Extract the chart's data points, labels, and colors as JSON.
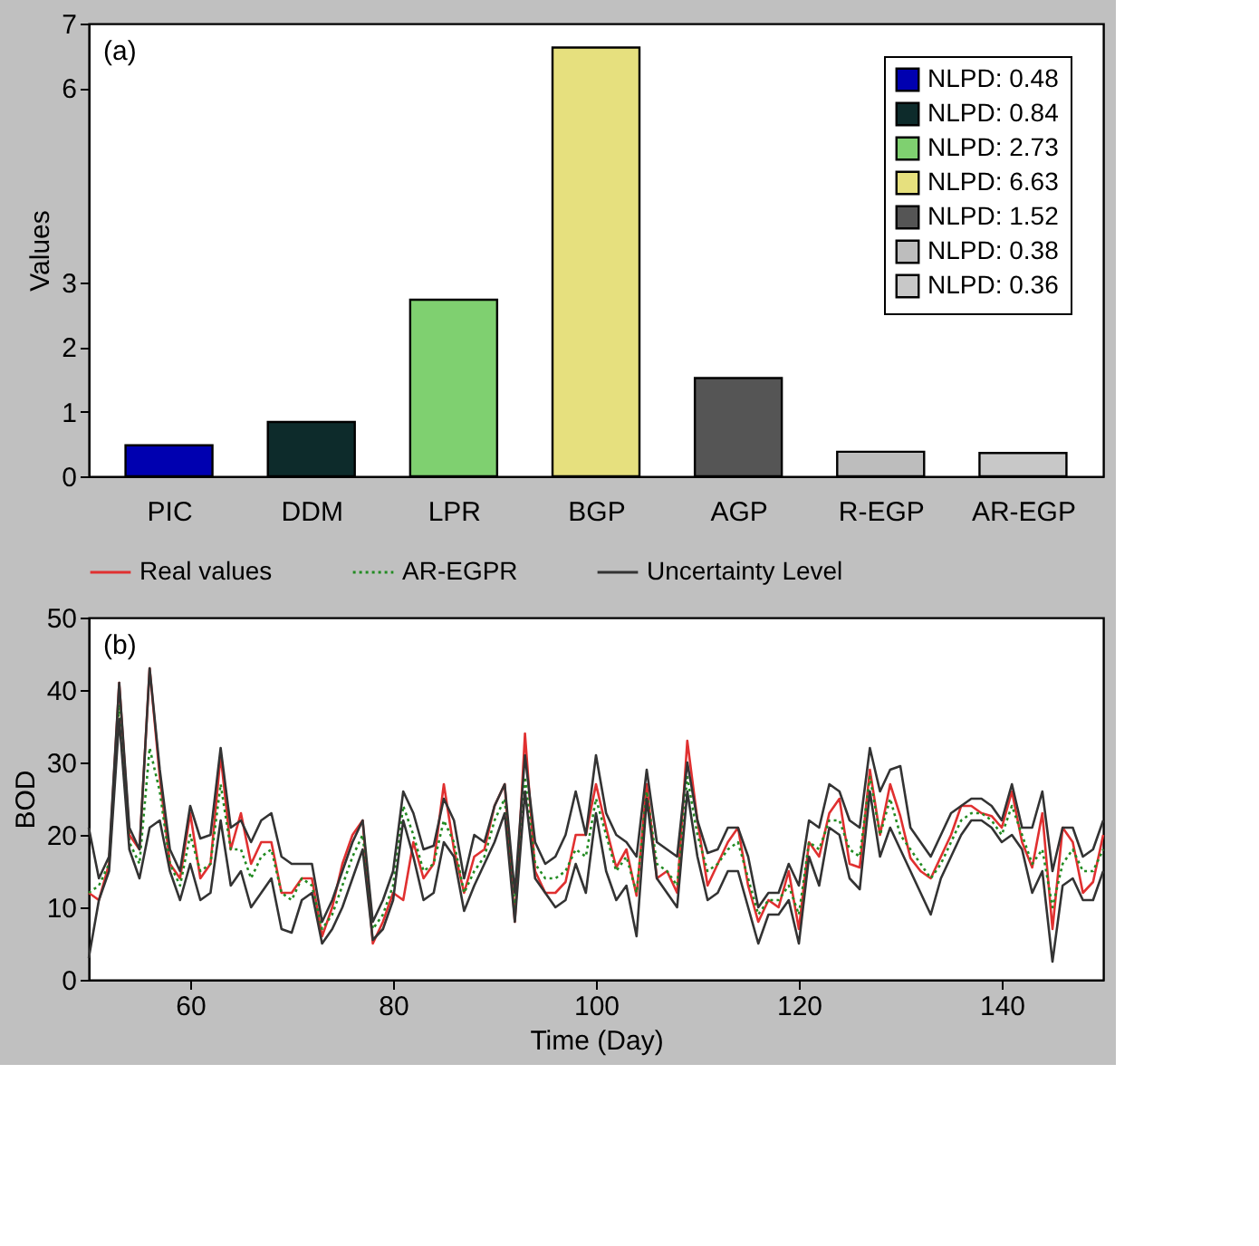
{
  "chart_data": [
    {
      "type": "bar",
      "categories": [
        "PIC",
        "DDM",
        "LPR",
        "BGP",
        "AGP",
        "R-EGP",
        "AR-EGP"
      ],
      "ylabel": "Values",
      "ylim": [
        0,
        7
      ],
      "yticks": [
        0,
        1,
        2,
        3,
        6,
        7
      ],
      "legend": "top right",
      "grid": false,
      "annotations": [
        "(a)"
      ],
      "series": [
        {
          "name": "NLPD: 0.48",
          "color": "#0000b0",
          "values": [
            0.48,
            null,
            null,
            null,
            null,
            null,
            null
          ]
        },
        {
          "name": "NLPD: 0.84",
          "color": "#0d2b2b",
          "values": [
            null,
            0.84,
            null,
            null,
            null,
            null,
            null
          ]
        },
        {
          "name": "NLPD: 2.73",
          "color": "#7fd070",
          "values": [
            null,
            null,
            2.73,
            null,
            null,
            null,
            null
          ]
        },
        {
          "name": "NLPD: 6.63",
          "color": "#e6e07e",
          "values": [
            null,
            null,
            null,
            6.63,
            null,
            null,
            null
          ]
        },
        {
          "name": "NLPD: 1.52",
          "color": "#555555",
          "values": [
            null,
            null,
            null,
            null,
            1.52,
            null,
            null
          ]
        },
        {
          "name": "NLPD: 0.38",
          "color": "#bdbdbd",
          "values": [
            null,
            null,
            null,
            null,
            null,
            0.38,
            null
          ]
        },
        {
          "name": "NLPD: 0.36",
          "color": "#c8c8c8",
          "values": [
            null,
            null,
            null,
            null,
            null,
            null,
            0.36
          ]
        }
      ]
    },
    {
      "type": "line",
      "xlabel": "Time (Day)",
      "ylabel": "BOD",
      "xlim": [
        50,
        150
      ],
      "xticks": [
        60,
        80,
        100,
        120,
        140
      ],
      "ylim": [
        0,
        50
      ],
      "yticks": [
        0,
        10,
        20,
        30,
        40,
        50
      ],
      "legend": "top",
      "grid": false,
      "marker": "none",
      "annotations": [
        "(b)"
      ],
      "x": [
        50,
        51,
        52,
        53,
        54,
        55,
        56,
        57,
        58,
        59,
        60,
        61,
        62,
        63,
        64,
        65,
        66,
        67,
        68,
        69,
        70,
        71,
        72,
        73,
        74,
        75,
        76,
        77,
        78,
        79,
        80,
        81,
        82,
        83,
        84,
        85,
        86,
        87,
        88,
        89,
        90,
        91,
        92,
        93,
        94,
        95,
        96,
        97,
        98,
        99,
        100,
        101,
        102,
        103,
        104,
        105,
        106,
        107,
        108,
        109,
        110,
        111,
        112,
        113,
        114,
        115,
        116,
        117,
        118,
        119,
        120,
        121,
        122,
        123,
        124,
        125,
        126,
        127,
        128,
        129,
        130,
        131,
        132,
        133,
        134,
        135,
        136,
        137,
        138,
        139,
        140,
        141,
        142,
        143,
        144,
        145,
        146,
        147,
        148,
        149,
        150
      ],
      "series": [
        {
          "name": "Real values",
          "color": "#e03030",
          "line_style": "solid",
          "values": [
            12,
            11,
            16,
            41,
            20,
            18,
            43,
            28,
            16,
            14,
            23,
            14,
            16,
            31,
            18,
            23,
            16,
            19,
            19,
            12,
            12,
            14,
            14,
            6,
            10,
            16,
            20,
            22,
            5,
            8,
            12,
            11,
            19,
            14,
            16,
            27,
            18,
            12,
            17,
            18,
            24,
            27,
            8,
            34,
            15,
            12,
            12,
            13.5,
            20,
            20,
            27,
            21,
            15.5,
            18,
            11.6,
            27,
            14,
            15,
            12,
            33,
            22,
            13,
            16,
            19,
            21,
            13,
            8,
            11,
            10,
            15,
            7,
            19,
            17,
            23,
            25,
            16,
            15.5,
            29,
            20,
            27,
            22.6,
            16.8,
            15,
            14,
            17,
            20,
            24,
            24,
            23,
            22.6,
            21,
            26,
            19,
            15.5,
            23,
            7,
            21,
            19,
            12,
            13.5,
            20
          ]
        },
        {
          "name": "AR-EGPR",
          "color": "#228b22",
          "line_style": "dotted",
          "values": [
            12,
            13,
            16,
            38,
            19,
            16,
            32,
            26,
            16,
            13,
            20,
            15,
            16,
            27,
            18,
            18,
            14,
            17,
            18,
            12,
            11,
            14,
            13,
            7,
            9,
            13,
            17,
            20,
            7,
            9,
            13,
            24,
            20,
            15,
            16,
            22,
            19,
            12,
            15,
            17,
            22,
            25,
            10,
            28,
            16,
            14,
            14,
            15,
            18,
            17,
            25,
            20,
            15,
            17,
            12,
            26,
            16,
            15,
            13,
            28,
            20,
            15,
            16,
            18,
            19,
            14,
            9,
            11,
            11,
            13,
            9,
            19,
            18,
            22,
            22,
            18,
            17,
            28,
            20,
            25,
            20,
            18,
            16,
            14,
            16,
            19,
            22,
            23,
            23,
            22,
            20,
            24,
            20,
            16,
            18,
            10,
            16,
            18,
            15,
            15,
            18
          ]
        },
        {
          "name": "Uncertainty Level",
          "color": "#333333",
          "line_style": "solid",
          "values": [
            21,
            14,
            17,
            41,
            21,
            18,
            43,
            29,
            18,
            15,
            24,
            19.5,
            20,
            32,
            21,
            22,
            19,
            22,
            23,
            17,
            16,
            16,
            16,
            8,
            11,
            15,
            19,
            22,
            8,
            11,
            15,
            26,
            23,
            18,
            18.5,
            25,
            22,
            14,
            20,
            19,
            24,
            27,
            12,
            31,
            19,
            16,
            17,
            20,
            26,
            20,
            31,
            23,
            20,
            19,
            17,
            29,
            19,
            18,
            17,
            30,
            22,
            17.5,
            18,
            21,
            21,
            17,
            10,
            12,
            12,
            16,
            13,
            22,
            21,
            27,
            26,
            22,
            21,
            32,
            26,
            29,
            29.5,
            21,
            19,
            17,
            20,
            23,
            24,
            25,
            25,
            24,
            22,
            27,
            21,
            21,
            26,
            15,
            21,
            21,
            17,
            18,
            22
          ]
        },
        {
          "color": "#333333",
          "line_style": "solid",
          "values": [
            3,
            11,
            15,
            36,
            18,
            14,
            21,
            22,
            15,
            11,
            16,
            11,
            12,
            22,
            13,
            15,
            10,
            12,
            14,
            7,
            6.5,
            11,
            12,
            5,
            7,
            10,
            14,
            18,
            5.5,
            7,
            11,
            22,
            17,
            11,
            12,
            19,
            17,
            9.5,
            13,
            16,
            19,
            23,
            8,
            26,
            14,
            12,
            10,
            11,
            16,
            12,
            23,
            15,
            11,
            13,
            6,
            25,
            14,
            12,
            10,
            26,
            17,
            11,
            12,
            15,
            15,
            10,
            5,
            9,
            9,
            11,
            5,
            17,
            13,
            21,
            20,
            14,
            12.5,
            26,
            17,
            21,
            18,
            15,
            12,
            9,
            14,
            17,
            20,
            22,
            22,
            21,
            19,
            20,
            18,
            12,
            15,
            2.5,
            13,
            14,
            11,
            11,
            15
          ]
        }
      ]
    }
  ]
}
